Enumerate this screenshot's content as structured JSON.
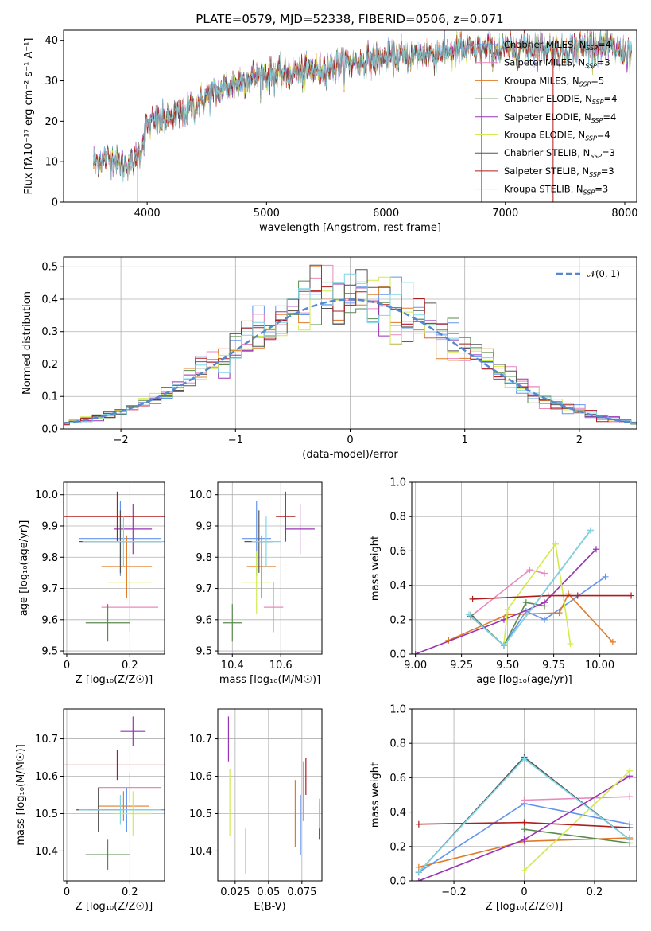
{
  "title": "PLATE=0579, MJD=52338, FIBERID=0506, z=0.071",
  "colors": [
    "#6495ed",
    "#e889bd",
    "#e07b28",
    "#5a8a4e",
    "#9933b3",
    "#d4ea4e",
    "#555555",
    "#b01c1c",
    "#7fd6e6"
  ],
  "legend": [
    {
      "name": "Chabrier MILES",
      "nssp": "4"
    },
    {
      "name": "Salpeter MILES",
      "nssp": "3"
    },
    {
      "name": "Kroupa MILES",
      "nssp": "5"
    },
    {
      "name": "Chabrier ELODIE",
      "nssp": "4"
    },
    {
      "name": "Salpeter ELODIE",
      "nssp": "4"
    },
    {
      "name": "Kroupa ELODIE",
      "nssp": "4"
    },
    {
      "name": "Chabrier STELIB",
      "nssp": "3"
    },
    {
      "name": "Salpeter STELIB",
      "nssp": "3"
    },
    {
      "name": "Kroupa STELIB",
      "nssp": "3"
    }
  ],
  "nssp_label": "N",
  "nssp_sub": "SSP",
  "chart_data": [
    {
      "id": "spectrum",
      "type": "line",
      "xlabel": "wavelength [Angstrom, rest frame]",
      "ylabel": "Flux [fλ10⁻¹⁷ erg cm⁻² s⁻¹ A⁻¹]",
      "xlim": [
        3300,
        8100
      ],
      "ylim": [
        0,
        42.5
      ],
      "xticks": [
        4000,
        5000,
        6000,
        7000,
        8000
      ],
      "yticks": [
        0,
        10,
        20,
        30,
        40
      ],
      "continuum_x": [
        3550,
        3700,
        3800,
        3900,
        3950,
        4000,
        4100,
        4300,
        4500,
        4700,
        4900,
        5100,
        5300,
        5500,
        5700,
        5900,
        6100,
        6300,
        6500,
        6700,
        6900,
        7100,
        7300,
        7500,
        7700,
        7900,
        8050
      ],
      "continuum_y": [
        10,
        11,
        9,
        10,
        13,
        19,
        20,
        22,
        26,
        29,
        31,
        31.5,
        32,
        33,
        34.5,
        35,
        36,
        36.5,
        37,
        37.5,
        37.5,
        38,
        38.5,
        37.5,
        39,
        38,
        37
      ]
    },
    {
      "id": "residuals",
      "type": "step-histogram",
      "xlabel": "(data-model)/error",
      "ylabel": "Normed distribution",
      "xlim": [
        -2.5,
        2.5
      ],
      "ylim": [
        0,
        0.53
      ],
      "xticks": [
        -2,
        -1,
        0,
        1,
        2
      ],
      "yticks": [
        0,
        0.1,
        0.2,
        0.3,
        0.4,
        0.5
      ],
      "reference_label": "𝒩(0, 1)",
      "bin_width": 0.1
    },
    {
      "id": "age-vs-Z",
      "type": "errorbar",
      "xlabel": "Z [log₁₀(Z/Z☉)]",
      "ylabel": "age  [log₁₀(age/yr)]",
      "xlim": [
        -0.01,
        0.31
      ],
      "ylim": [
        9.49,
        10.04
      ],
      "xticks": [
        0.0,
        0.2
      ],
      "yticks": [
        9.5,
        9.6,
        9.7,
        9.8,
        9.9,
        10.0
      ],
      "points": [
        [
          0.17,
          9.86,
          0.13,
          0.12
        ],
        [
          0.2,
          9.64,
          0.09,
          0.08
        ],
        [
          0.19,
          9.77,
          0.08,
          0.1
        ],
        [
          0.13,
          9.59,
          0.07,
          0.06
        ],
        [
          0.21,
          9.89,
          0.06,
          0.08
        ],
        [
          0.2,
          9.72,
          0.07,
          0.1
        ],
        [
          0.17,
          9.85,
          0.13,
          0.1
        ],
        [
          0.16,
          9.93,
          0.18,
          0.08
        ],
        [
          0.18,
          9.85,
          0.13,
          0.08
        ]
      ]
    },
    {
      "id": "age-vs-mass",
      "type": "errorbar",
      "xlabel": "mass [log₁₀(M/M☉)]",
      "ylabel": "",
      "xlim": [
        10.34,
        10.77
      ],
      "ylim": [
        9.49,
        10.04
      ],
      "xticks": [
        10.4,
        10.6
      ],
      "yticks": [
        9.5,
        9.6,
        9.7,
        9.8,
        9.9,
        10.0
      ],
      "points": [
        [
          10.5,
          9.86,
          0.06,
          0.12
        ],
        [
          10.57,
          9.64,
          0.04,
          0.08
        ],
        [
          10.52,
          9.77,
          0.06,
          0.1
        ],
        [
          10.4,
          9.59,
          0.04,
          0.06
        ],
        [
          10.68,
          9.89,
          0.06,
          0.08
        ],
        [
          10.5,
          9.72,
          0.06,
          0.1
        ],
        [
          10.51,
          9.85,
          0.06,
          0.1
        ],
        [
          10.62,
          9.93,
          0.04,
          0.08
        ],
        [
          10.54,
          9.85,
          0.06,
          0.08
        ]
      ]
    },
    {
      "id": "weight-vs-age",
      "type": "line",
      "xlabel": "age  [log₁₀(age/yr)]",
      "ylabel": "mass weight",
      "xlim": [
        8.98,
        10.2
      ],
      "ylim": [
        0,
        1
      ],
      "xticks": [
        9.0,
        9.25,
        9.5,
        9.75,
        10.0
      ],
      "yticks": [
        0,
        0.2,
        0.4,
        0.6,
        0.8,
        1.0
      ],
      "series": [
        [
          [
            9.3,
            0.22
          ],
          [
            9.48,
            0.05
          ],
          [
            9.6,
            0.25
          ],
          [
            9.7,
            0.2
          ],
          [
            10.03,
            0.45
          ]
        ],
        [
          [
            9.3,
            0.22
          ],
          [
            9.62,
            0.49
          ],
          [
            9.7,
            0.47
          ]
        ],
        [
          [
            9.18,
            0.08
          ],
          [
            9.5,
            0.23
          ],
          [
            9.78,
            0.24
          ],
          [
            9.83,
            0.35
          ],
          [
            10.07,
            0.07
          ]
        ],
        [
          [
            9.3,
            0.23
          ],
          [
            9.48,
            0.05
          ],
          [
            9.6,
            0.3
          ],
          [
            9.7,
            0.28
          ]
        ],
        [
          [
            9.0,
            0.0
          ],
          [
            9.48,
            0.2
          ],
          [
            9.7,
            0.3
          ],
          [
            9.98,
            0.61
          ]
        ],
        [
          [
            9.48,
            0.06
          ],
          [
            9.5,
            0.26
          ],
          [
            9.76,
            0.64
          ],
          [
            9.84,
            0.06
          ]
        ],
        [
          [
            9.3,
            0.22
          ],
          [
            9.48,
            0.05
          ],
          [
            9.95,
            0.72
          ]
        ],
        [
          [
            9.31,
            0.32
          ],
          [
            9.72,
            0.34
          ],
          [
            9.88,
            0.34
          ],
          [
            10.17,
            0.34
          ]
        ],
        [
          [
            9.29,
            0.23
          ],
          [
            9.48,
            0.05
          ],
          [
            9.95,
            0.72
          ]
        ]
      ]
    },
    {
      "id": "mass-vs-Z",
      "type": "errorbar",
      "xlabel": "Z [log₁₀(Z/Z☉)]",
      "ylabel": "mass [log₁₀(M/M☉)]",
      "xlim": [
        -0.01,
        0.31
      ],
      "ylim": [
        10.32,
        10.78
      ],
      "xticks": [
        0.0,
        0.2
      ],
      "yticks": [
        10.4,
        10.5,
        10.6,
        10.7
      ],
      "points": [
        [
          0.19,
          10.51,
          0.12,
          0.06
        ],
        [
          0.2,
          10.57,
          0.1,
          0.04
        ],
        [
          0.18,
          10.52,
          0.08,
          0.04
        ],
        [
          0.13,
          10.39,
          0.07,
          0.04
        ],
        [
          0.21,
          10.72,
          0.04,
          0.04
        ],
        [
          0.21,
          10.5,
          0.06,
          0.06
        ],
        [
          0.1,
          10.51,
          0.07,
          0.06
        ],
        [
          0.16,
          10.63,
          0.17,
          0.04
        ],
        [
          0.17,
          10.51,
          0.13,
          0.04
        ]
      ]
    },
    {
      "id": "mass-vs-ebv",
      "type": "errorbar",
      "xlabel": "E(B-V)",
      "ylabel": "",
      "xlim": [
        0.012,
        0.09
      ],
      "ylim": [
        10.32,
        10.78
      ],
      "xticks": [
        0.025,
        0.05,
        0.075
      ],
      "yticks": [
        10.4,
        10.5,
        10.6,
        10.7
      ],
      "points": [
        [
          0.074,
          10.47,
          0,
          0.08
        ],
        [
          0.076,
          10.56,
          0,
          0.08
        ],
        [
          0.07,
          10.5,
          0,
          0.09
        ],
        [
          0.033,
          10.4,
          0,
          0.06
        ],
        [
          0.02,
          10.7,
          0,
          0.06
        ],
        [
          0.021,
          10.53,
          0,
          0.09
        ],
        [
          0.088,
          10.48,
          0,
          0.05
        ],
        [
          0.078,
          10.6,
          0,
          0.05
        ],
        [
          0.088,
          10.5,
          0,
          0.04
        ]
      ]
    },
    {
      "id": "weight-vs-Z",
      "type": "line",
      "xlabel": "Z [log₁₀(Z/Z☉)]",
      "ylabel": "mass weight",
      "xlim": [
        -0.32,
        0.32
      ],
      "ylim": [
        0,
        1
      ],
      "xticks": [
        -0.2,
        0.0,
        0.2
      ],
      "yticks": [
        0,
        0.2,
        0.4,
        0.6,
        0.8,
        1.0
      ],
      "series": [
        [
          [
            -0.3,
            0.05
          ],
          [
            0,
            0.45
          ],
          [
            0.3,
            0.33
          ]
        ],
        [
          [
            0,
            0.47
          ],
          [
            0.3,
            0.49
          ]
        ],
        [
          [
            -0.3,
            0.08
          ],
          [
            0,
            0.23
          ],
          [
            0.3,
            0.25
          ]
        ],
        [
          [
            0,
            0.3
          ],
          [
            0.3,
            0.22
          ]
        ],
        [
          [
            -0.3,
            0.0
          ],
          [
            0,
            0.24
          ],
          [
            0.3,
            0.61
          ]
        ],
        [
          [
            0,
            0.06
          ],
          [
            0.3,
            0.64
          ]
        ],
        [
          [
            -0.3,
            0.05
          ],
          [
            0,
            0.72
          ],
          [
            0.3,
            0.24
          ]
        ],
        [
          [
            -0.3,
            0.33
          ],
          [
            0,
            0.34
          ],
          [
            0.3,
            0.31
          ]
        ],
        [
          [
            -0.3,
            0.05
          ],
          [
            0,
            0.71
          ],
          [
            0.3,
            0.24
          ]
        ]
      ]
    }
  ]
}
